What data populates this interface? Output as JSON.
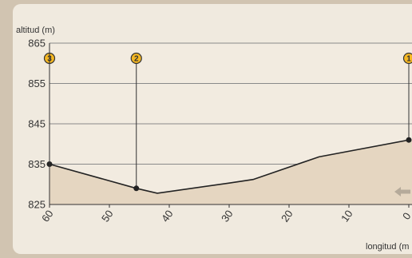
{
  "chart_data": {
    "type": "area",
    "xlabel": "longitud (m",
    "ylabel": "altitud (m)",
    "xlim": [
      60,
      0
    ],
    "ylim": [
      825,
      865
    ],
    "x_ticks": [
      "60",
      "50",
      "40",
      "30",
      "20",
      "10",
      "0"
    ],
    "y_ticks": [
      "865",
      "855",
      "845",
      "835",
      "825"
    ],
    "profile": [
      {
        "x": 60,
        "y": 835
      },
      {
        "x": 45.5,
        "y": 829
      },
      {
        "x": 42,
        "y": 827.8
      },
      {
        "x": 30,
        "y": 830.3
      },
      {
        "x": 26,
        "y": 831.2
      },
      {
        "x": 15,
        "y": 836.8
      },
      {
        "x": 0,
        "y": 841
      }
    ],
    "waypoints": [
      {
        "label": "3",
        "x": 60,
        "y": 835
      },
      {
        "label": "2",
        "x": 45.5,
        "y": 829
      },
      {
        "label": "1",
        "x": 0,
        "y": 841
      }
    ],
    "grid": true,
    "colors": {
      "fill": "#e5d6c1",
      "line": "#222222",
      "marker": "#f5b722",
      "grid": "#8a8a8a",
      "arrow": "#b5aa9a"
    }
  }
}
